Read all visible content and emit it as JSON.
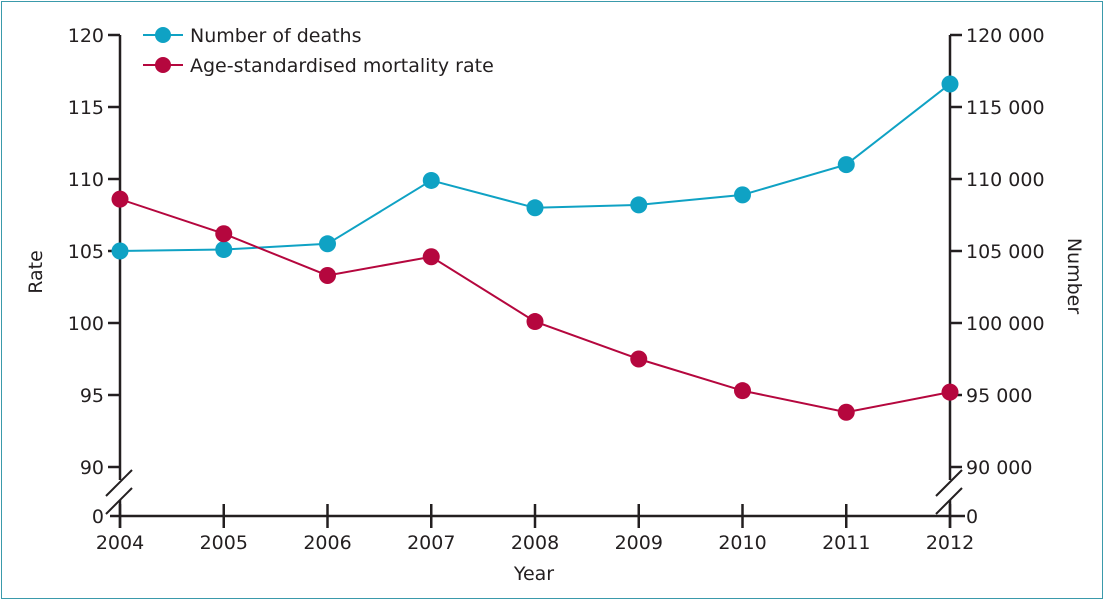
{
  "chart_data": {
    "type": "line",
    "title": "",
    "xlabel": "Year",
    "ylabel_left": "Rate",
    "ylabel_right": "Number",
    "x": [
      2004,
      2005,
      2006,
      2007,
      2008,
      2009,
      2010,
      2011,
      2012
    ],
    "x_tick_labels": [
      "2004",
      "2005",
      "2006",
      "2007",
      "2008",
      "2009",
      "2010",
      "2011",
      "2012"
    ],
    "ylim_left": [
      90,
      120
    ],
    "ylim_right": [
      90000,
      120000
    ],
    "axis_break": true,
    "left_tick_labels": [
      "120",
      "115",
      "110",
      "105",
      "100",
      "95",
      "90",
      "0"
    ],
    "left_ticks": [
      120,
      115,
      110,
      105,
      100,
      95,
      90
    ],
    "right_tick_labels": [
      "120 000",
      "115 000",
      "110 000",
      "105 000",
      "100 000",
      "95 000",
      "90 000",
      "0"
    ],
    "right_ticks": [
      120000,
      115000,
      110000,
      105000,
      100000,
      95000,
      90000
    ],
    "grid": false,
    "legend_position": "top-left",
    "series": [
      {
        "name": "Number of deaths",
        "axis": "right",
        "color": "#0fa2c4",
        "values": [
          105000,
          105100,
          105500,
          109900,
          108000,
          108200,
          108900,
          111000,
          116600
        ]
      },
      {
        "name": "Age-standardised mortality rate",
        "axis": "left",
        "color": "#b5073e",
        "values": [
          108.6,
          106.2,
          103.3,
          104.6,
          100.1,
          97.5,
          95.3,
          93.8,
          95.2
        ]
      }
    ]
  }
}
